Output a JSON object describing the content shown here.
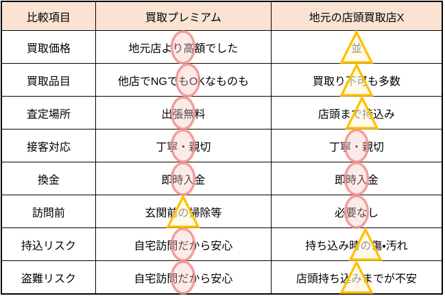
{
  "table": {
    "headers": [
      "比較項目",
      "買取プレミアム",
      "地元の店頭買取店X"
    ],
    "rows": [
      {
        "item": "買取価格",
        "premium": {
          "pre": "地元店よ",
          "marked": "り高",
          "post": "額でした",
          "mark": "circle"
        },
        "local": {
          "pre": "",
          "marked": "並",
          "post": "",
          "mark": "triangle"
        }
      },
      {
        "item": "買取品目",
        "premium": {
          "pre": "他店でNGで",
          "marked": "もO",
          "post": "Kなものも",
          "mark": "circle"
        },
        "local": {
          "pre": "買取り",
          "marked": "不可",
          "post": "も多数",
          "mark": "triangle"
        }
      },
      {
        "item": "査定場所",
        "premium": {
          "pre": "出",
          "marked": "張無",
          "post": "料",
          "mark": "circle"
        },
        "local": {
          "pre": "店頭ま",
          "marked": "で持",
          "post": "込み",
          "mark": "triangle"
        }
      },
      {
        "item": "接客対応",
        "premium": {
          "pre": "丁寧",
          "marked": "・",
          "post": "親切",
          "mark": "circle"
        },
        "local": {
          "pre": "丁寧",
          "marked": "・",
          "post": "親切",
          "mark": "circle"
        }
      },
      {
        "item": "換金",
        "premium": {
          "pre": "即",
          "marked": "時入",
          "post": "金",
          "mark": "circle"
        },
        "local": {
          "pre": "即",
          "marked": "時入",
          "post": "金",
          "mark": "circle"
        }
      },
      {
        "item": "訪問前",
        "premium": {
          "pre": "玄関前",
          "marked": "の",
          "post": "掃除等",
          "mark": "triangle"
        },
        "local": {
          "pre": "必",
          "marked": "要な",
          "post": "し",
          "mark": "circle"
        }
      },
      {
        "item": "持込リスク",
        "premium": {
          "pre": "自宅訪問",
          "marked": "だ",
          "post": "から安心",
          "mark": "circle"
        },
        "local": {
          "pre": "持ち込み時",
          "marked": "の",
          "post": "傷・汚れ",
          "mark": "triangle"
        }
      },
      {
        "item": "盗難リスク",
        "premium": {
          "pre": "自宅訪問",
          "marked": "だ",
          "post": "から安心",
          "mark": "circle"
        },
        "local": {
          "pre": "店頭持ち込",
          "marked": "み",
          "post": "までが不安",
          "mark": "triangle"
        }
      }
    ]
  },
  "colors": {
    "header_bg": "#FBE3D4",
    "border": "#000000",
    "text": "#000000",
    "background": "#FFFFFF",
    "circle_stroke": "#EE8F8C",
    "circle_fill": "#F6C9C6",
    "triangle_stroke": "#FFC000",
    "triangle_fill": "#FFF6DB"
  }
}
